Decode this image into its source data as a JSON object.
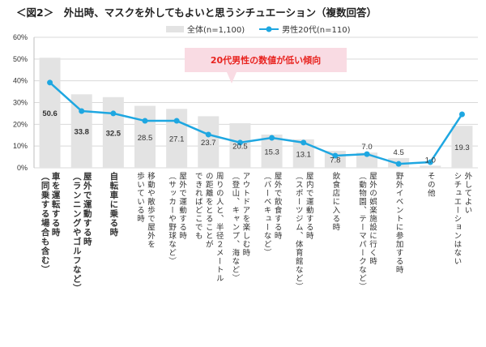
{
  "title": "＜図2＞　外出時、マスクを外してもよいと思うシチュエーション（複数回答）",
  "annotation": "20代男性の数値が低い傾向",
  "colors": {
    "bar": "#e3e3e3",
    "line": "#1ea7e1",
    "annotation_bg": "#f9dbe3",
    "annotation_text": "#e8231f"
  },
  "chart_data": {
    "type": "bar",
    "title": "＜図2＞　外出時、マスクを外してもよいと思うシチュエーション（複数回答）",
    "ylim": [
      0,
      60
    ],
    "yticks": [
      "0%",
      "10%",
      "20%",
      "30%",
      "40%",
      "50%",
      "60%"
    ],
    "grid": true,
    "legend": "top",
    "categories": [
      "車を運転する時\n（同乗する場合も含む）",
      "屋外で運動する時\n（ランニングやゴルフなど）",
      "自転車に乗る時",
      "移動や散歩で屋外を\n歩いている時",
      "屋外で運動する時\n（サッカーや野球など）",
      "周りの人と、半径２メートル\nの距離をとることが\nできればどこでも",
      "アウトドアを楽しむ時\n（登山、キャンプ、海など）",
      "屋外で飲食する時\n（バーベキューなど）",
      "屋内で運動する時\n（スポーツジム、体育館など）",
      "飲食店に入る時",
      "屋外の娯楽施設に行く時\n（動物園、テーマパークなど）",
      "野外イベントに参加する時",
      "その他",
      "外してよい\nシチュエーションはない"
    ],
    "series": [
      {
        "name": "全体(n=1,100)",
        "type": "bar",
        "values": [
          50.6,
          33.8,
          32.5,
          28.5,
          27.1,
          23.7,
          20.5,
          15.3,
          13.1,
          7.8,
          7.0,
          4.5,
          1.0,
          19.3
        ]
      },
      {
        "name": "男性20代(n=110)",
        "type": "line",
        "values": [
          39.2,
          26.1,
          25.0,
          21.6,
          21.6,
          15.3,
          11.6,
          13.8,
          11.6,
          5.6,
          6.3,
          1.8,
          2.6,
          24.6
        ]
      }
    ]
  }
}
